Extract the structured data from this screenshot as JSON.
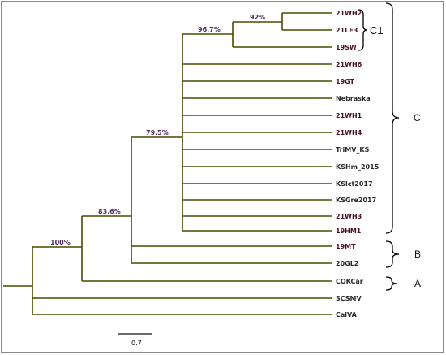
{
  "tree": {
    "taxa": [
      "21WH2",
      "21LE3",
      "19SW",
      "21WH6",
      "19GT",
      "Nebraska",
      "21WH1",
      "21WH4",
      "TriMV_KS",
      "KSHm_2015",
      "KSlct2017",
      "KSGre2017",
      "21WH3",
      "19HM1",
      "19MT",
      "20GL2",
      "COKCar",
      "SCSMV",
      "CalVA"
    ],
    "support": {
      "n92": "92%",
      "n96": "96.7%",
      "n795": "79.5%",
      "n836": "83.6%",
      "n100": "100%"
    },
    "clades": {
      "C1": "C1",
      "C": "C",
      "B": "B",
      "A": "A"
    },
    "scale_bar": "0.7"
  }
}
